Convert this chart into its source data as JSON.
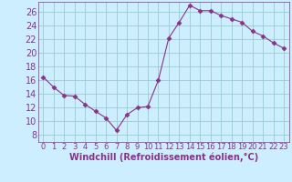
{
  "x": [
    0,
    1,
    2,
    3,
    4,
    5,
    6,
    7,
    8,
    9,
    10,
    11,
    12,
    13,
    14,
    15,
    16,
    17,
    18,
    19,
    20,
    21,
    22,
    23
  ],
  "y": [
    16.5,
    15.0,
    13.8,
    13.7,
    12.5,
    11.5,
    10.5,
    8.7,
    11.0,
    12.0,
    12.2,
    16.0,
    22.2,
    24.5,
    27.0,
    26.2,
    26.2,
    25.5,
    25.0,
    24.5,
    23.2,
    22.5,
    21.5,
    20.7
  ],
  "line_color": "#883388",
  "marker": "D",
  "marker_size": 2.5,
  "bg_color": "#cceeff",
  "grid_color": "#99cccc",
  "xlabel": "Windchill (Refroidissement éolien,°C)",
  "xlim": [
    -0.5,
    23.5
  ],
  "ylim": [
    7,
    27.5
  ],
  "yticks": [
    8,
    10,
    12,
    14,
    16,
    18,
    20,
    22,
    24,
    26
  ],
  "xtick_labels": [
    "0",
    "1",
    "2",
    "3",
    "4",
    "5",
    "6",
    "7",
    "8",
    "9",
    "10",
    "11",
    "12",
    "13",
    "14",
    "15",
    "16",
    "17",
    "18",
    "19",
    "20",
    "21",
    "22",
    "23"
  ],
  "tick_color": "#883388",
  "label_color": "#883388",
  "fontsize_xlabel": 7,
  "fontsize_ytick": 7,
  "fontsize_xtick": 6
}
